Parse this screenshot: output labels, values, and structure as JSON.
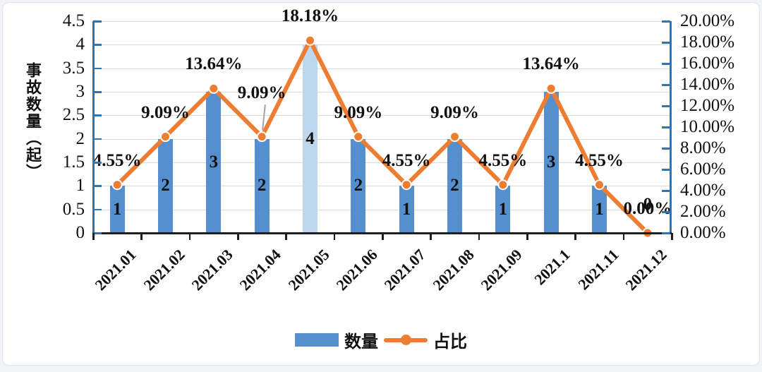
{
  "page": {
    "background": "#f2f3f6",
    "panel_background": "#ffffff",
    "panel_border": "#e2e3e9"
  },
  "chart_data": {
    "type": "combo-bar-line",
    "title": "",
    "categories": [
      "2021.01",
      "2021.02",
      "2021.03",
      "2021.04",
      "2021.05",
      "2021.06",
      "2021.07",
      "2021.08",
      "2021.09",
      "2021.1",
      "2021.11",
      "2021.12"
    ],
    "series": [
      {
        "name": "数量",
        "type": "bar",
        "axis": "left",
        "values": [
          1,
          2,
          3,
          2,
          4,
          2,
          1,
          2,
          1,
          3,
          1,
          0
        ],
        "bar_labels": [
          "1",
          "2",
          "3",
          "2",
          "4",
          "2",
          "1",
          "2",
          "1",
          "3",
          "1",
          "0"
        ],
        "color": "#568fce",
        "highlight_index": 4,
        "highlight_color": "#bdd7ee"
      },
      {
        "name": "占比",
        "type": "line",
        "axis": "right",
        "values": [
          4.55,
          9.09,
          13.64,
          9.09,
          18.18,
          9.09,
          4.55,
          9.09,
          4.55,
          13.64,
          4.55,
          0
        ],
        "point_labels": [
          "4.55%",
          "9.09%",
          "13.64%",
          "9.09%",
          "18.18%",
          "9.09%",
          "4.55%",
          "9.09%",
          "4.55%",
          "13.64%",
          "4.55%",
          "0.00%"
        ],
        "color": "#ed7d31",
        "marker": "circle-white-ring",
        "callout_index": 3
      }
    ],
    "left_axis": {
      "title": "事故数量（起）",
      "min": 0,
      "max": 4.5,
      "step": 0.5,
      "tick_labels": [
        "4.5",
        "4",
        "3.5",
        "3",
        "2.5",
        "2",
        "1.5",
        "1",
        "0.5",
        "0"
      ],
      "color": "#2e75b6"
    },
    "right_axis": {
      "min": 0,
      "max": 20,
      "step": 2,
      "tick_labels": [
        "20.00%",
        "18.00%",
        "16.00%",
        "14.00%",
        "12.00%",
        "10.00%",
        "8.00%",
        "6.00%",
        "4.00%",
        "2.00%",
        "0.00%"
      ],
      "color": "#2e75b6"
    },
    "x_axis": {
      "labels": [
        "2021.01",
        "2021.02",
        "2021.03",
        "2021.04",
        "2021.05",
        "2021.06",
        "2021.07",
        "2021.08",
        "2021.09",
        "2021.1",
        "2021.11",
        "2021.12"
      ],
      "label_rotation_deg": -45,
      "color": "#1f1f1f"
    },
    "grid": true,
    "gridline_color": "#dbdbdb",
    "legend": {
      "position": "bottom",
      "items": [
        {
          "label": "数量",
          "swatch": "bar"
        },
        {
          "label": "占比",
          "swatch": "line"
        }
      ]
    }
  }
}
